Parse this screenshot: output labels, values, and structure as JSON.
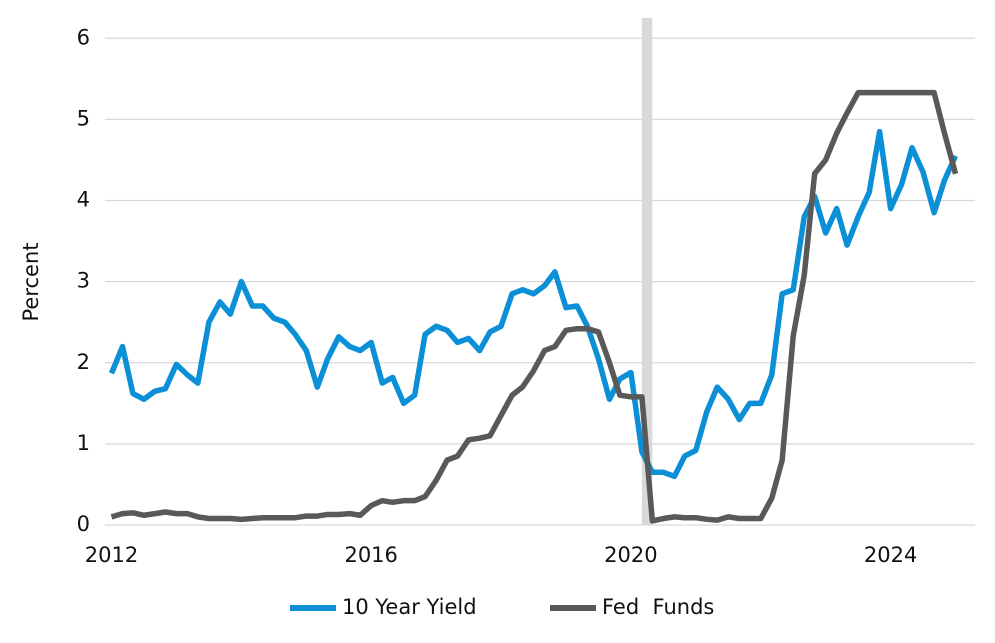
{
  "chart_data": {
    "type": "line",
    "y_label": "Percent",
    "x": [
      2012,
      2012.17,
      2012.33,
      2012.5,
      2012.67,
      2012.83,
      2013,
      2013.17,
      2013.33,
      2013.5,
      2013.67,
      2013.83,
      2014,
      2014.17,
      2014.33,
      2014.5,
      2014.67,
      2014.83,
      2015,
      2015.17,
      2015.33,
      2015.5,
      2015.67,
      2015.83,
      2016,
      2016.17,
      2016.33,
      2016.5,
      2016.67,
      2016.83,
      2017,
      2017.17,
      2017.33,
      2017.5,
      2017.67,
      2017.83,
      2018,
      2018.17,
      2018.33,
      2018.5,
      2018.67,
      2018.83,
      2019,
      2019.17,
      2019.33,
      2019.5,
      2019.67,
      2019.83,
      2020,
      2020.17,
      2020.33,
      2020.5,
      2020.67,
      2020.83,
      2021,
      2021.17,
      2021.33,
      2021.5,
      2021.67,
      2021.83,
      2022,
      2022.17,
      2022.33,
      2022.5,
      2022.67,
      2022.83,
      2023,
      2023.17,
      2023.33,
      2023.5,
      2023.67,
      2023.83,
      2024,
      2024.17,
      2024.33,
      2024.5,
      2024.67,
      2024.83,
      2025
    ],
    "series": [
      {
        "name": "10 Year Yield",
        "color": "#0b8fd6",
        "values": [
          1.87,
          2.2,
          1.62,
          1.55,
          1.65,
          1.68,
          1.98,
          1.85,
          1.75,
          2.5,
          2.75,
          2.6,
          3.0,
          2.7,
          2.7,
          2.55,
          2.5,
          2.35,
          2.15,
          1.7,
          2.05,
          2.32,
          2.2,
          2.15,
          2.25,
          1.75,
          1.82,
          1.5,
          1.6,
          2.35,
          2.45,
          2.4,
          2.25,
          2.3,
          2.15,
          2.38,
          2.45,
          2.85,
          2.9,
          2.85,
          2.95,
          3.12,
          2.68,
          2.7,
          2.45,
          2.05,
          1.55,
          1.8,
          1.88,
          0.9,
          0.65,
          0.65,
          0.6,
          0.85,
          0.92,
          1.4,
          1.7,
          1.55,
          1.3,
          1.5,
          1.5,
          1.85,
          2.85,
          2.9,
          3.8,
          4.05,
          3.6,
          3.9,
          3.45,
          3.8,
          4.1,
          4.85,
          3.9,
          4.2,
          4.65,
          4.35,
          3.85,
          4.25,
          4.55
        ]
      },
      {
        "name": "Fed  Funds",
        "color": "#595959",
        "values": [
          0.1,
          0.14,
          0.15,
          0.12,
          0.14,
          0.16,
          0.14,
          0.14,
          0.1,
          0.08,
          0.08,
          0.08,
          0.07,
          0.08,
          0.09,
          0.09,
          0.09,
          0.09,
          0.11,
          0.11,
          0.13,
          0.13,
          0.14,
          0.12,
          0.24,
          0.3,
          0.28,
          0.3,
          0.3,
          0.35,
          0.55,
          0.8,
          0.85,
          1.05,
          1.07,
          1.1,
          1.35,
          1.6,
          1.7,
          1.9,
          2.15,
          2.2,
          2.4,
          2.42,
          2.42,
          2.38,
          2.0,
          1.6,
          1.58,
          1.58,
          0.05,
          0.08,
          0.1,
          0.09,
          0.09,
          0.07,
          0.06,
          0.1,
          0.08,
          0.08,
          0.08,
          0.33,
          0.8,
          2.33,
          3.08,
          4.33,
          4.5,
          4.83,
          5.08,
          5.33,
          5.33,
          5.33,
          5.33,
          5.33,
          5.33,
          5.33,
          5.33,
          4.83,
          4.33
        ]
      }
    ],
    "shaded_x": [
      2020.17,
      2020.33
    ],
    "shade_color": "#d9d9d9",
    "xlim": [
      2011.9,
      2025.3
    ],
    "xticks": [
      2012,
      2016,
      2020,
      2024
    ],
    "ylim": [
      0,
      6.25
    ],
    "yticks": [
      0,
      1,
      2,
      3,
      4,
      5,
      6
    ],
    "grid": true,
    "legend_position": "bottom"
  }
}
